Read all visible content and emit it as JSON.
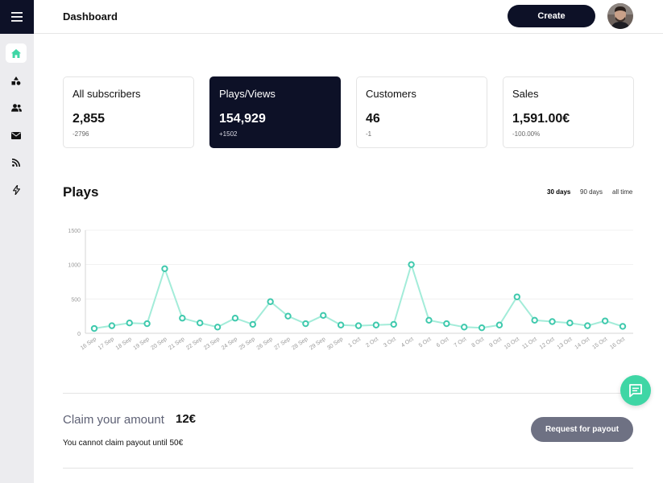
{
  "header": {
    "title": "Dashboard",
    "create_label": "Create"
  },
  "sidebar": {
    "items": [
      {
        "name": "home",
        "active": true
      },
      {
        "name": "shapes",
        "active": false
      },
      {
        "name": "users",
        "active": false
      },
      {
        "name": "mail",
        "active": false
      },
      {
        "name": "rss",
        "active": false
      },
      {
        "name": "bolt",
        "active": false
      }
    ]
  },
  "stats": [
    {
      "title": "All subscribers",
      "value": "2,855",
      "delta": "-2796"
    },
    {
      "title": "Plays/Views",
      "value": "154,929",
      "delta": "+1502"
    },
    {
      "title": "Customers",
      "value": "46",
      "delta": "-1"
    },
    {
      "title": "Sales",
      "value": "1,591.00€",
      "delta": "-100.00%"
    }
  ],
  "plays": {
    "title": "Plays",
    "ranges": [
      "30 days",
      "90 days",
      "all time"
    ],
    "active_range": "30 days"
  },
  "chart_data": {
    "type": "line",
    "title": "Plays",
    "xlabel": "",
    "ylabel": "",
    "ylim": [
      0,
      1500
    ],
    "yticks": [
      0,
      500,
      1000,
      1500
    ],
    "grid": true,
    "categories": [
      "16 Sep",
      "17 Sep",
      "18 Sep",
      "19 Sep",
      "20 Sep",
      "21 Sep",
      "22 Sep",
      "23 Sep",
      "24 Sep",
      "25 Sep",
      "26 Sep",
      "27 Sep",
      "28 Sep",
      "29 Sep",
      "30 Sep",
      "1 Oct",
      "2 Oct",
      "3 Oct",
      "4 Oct",
      "5 Oct",
      "6 Oct",
      "7 Oct",
      "8 Oct",
      "9 Oct",
      "10 Oct",
      "11 Oct",
      "12 Oct",
      "13 Oct",
      "14 Oct",
      "15 Oct",
      "16 Oct"
    ],
    "values": [
      70,
      110,
      150,
      140,
      940,
      220,
      150,
      90,
      220,
      130,
      460,
      250,
      140,
      260,
      120,
      110,
      120,
      130,
      1000,
      190,
      140,
      90,
      80,
      120,
      530,
      190,
      170,
      150,
      110,
      180,
      100
    ],
    "colors": {
      "line": "#a3ecd9",
      "point": "#3fc9ad",
      "grid": "#f1f1f1",
      "axis": "#d6d6d6",
      "tick": "#9a9a9a"
    }
  },
  "claim": {
    "label": "Claim your amount",
    "amount": "12€",
    "note": "You cannot claim payout until 50€",
    "button_label": "Request for payout"
  },
  "colors": {
    "navy": "#0d1127",
    "accent": "#3fd6a5",
    "payout_button": "#6e7183"
  }
}
